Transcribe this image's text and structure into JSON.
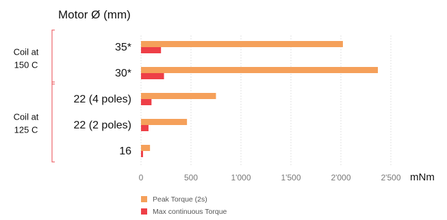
{
  "chart_data": {
    "type": "bar",
    "orientation": "horizontal",
    "title": "Motor Ø (mm)",
    "xlabel": "mNm",
    "ylabel": "",
    "xlim": [
      0,
      2500
    ],
    "x_ticks": [
      0,
      500,
      1000,
      1500,
      2000,
      2500
    ],
    "x_tick_labels": [
      "0",
      "500",
      "1'000",
      "1'500",
      "2'000",
      "2'500"
    ],
    "grid": "vertical",
    "legend_position": "bottom",
    "categories": [
      "35*",
      "30*",
      "22 (4 poles)",
      "22 (2 poles)",
      "16"
    ],
    "series": [
      {
        "name": "Peak Torque (2s)",
        "color": "#F5A05A",
        "values": [
          2020,
          2370,
          750,
          460,
          90
        ]
      },
      {
        "name": "Max continuous Torque",
        "color": "#EE3F47",
        "values": [
          200,
          230,
          105,
          75,
          20
        ]
      }
    ],
    "groups": [
      {
        "label_lines": [
          "Coil at",
          "150 C"
        ],
        "categories": [
          "35*",
          "30*"
        ]
      },
      {
        "label_lines": [
          "Coil at",
          "125 C"
        ],
        "categories": [
          "22 (4 poles)",
          "22 (2 poles)",
          "16"
        ]
      }
    ],
    "bracket_color": "#E8474C"
  }
}
